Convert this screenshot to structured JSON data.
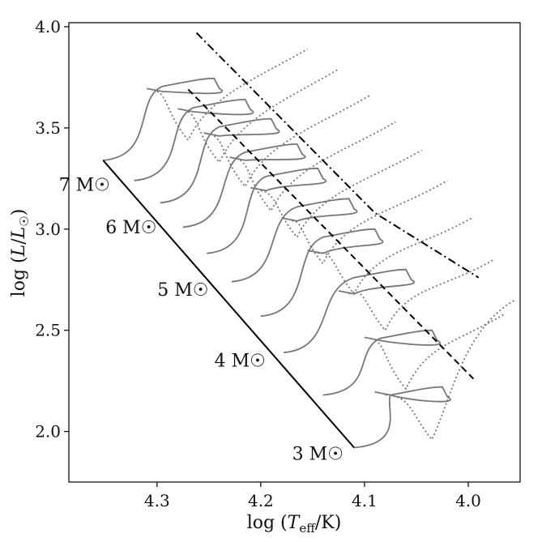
{
  "chart_data": {
    "type": "line",
    "xlabel": "log (T_eff/K)",
    "ylabel": "log (L/L☉)",
    "xlim": [
      4.385,
      3.95
    ],
    "ylim": [
      1.75,
      4.02
    ],
    "xticks": [
      {
        "value": 4.3,
        "label": "4.3"
      },
      {
        "value": 4.2,
        "label": "4.2"
      },
      {
        "value": 4.1,
        "label": "4.1"
      },
      {
        "value": 4.0,
        "label": "4.0"
      }
    ],
    "yticks": [
      {
        "value": 2.0,
        "label": "2.0"
      },
      {
        "value": 2.5,
        "label": "2.5"
      },
      {
        "value": 3.0,
        "label": "3.0"
      },
      {
        "value": 3.5,
        "label": "3.5"
      },
      {
        "value": 4.0,
        "label": "4.0"
      }
    ],
    "grid": false,
    "mass_labels": [
      {
        "text": "7 M☉",
        "x": 4.37,
        "y": 3.19
      },
      {
        "text": "6 M☉",
        "x": 4.325,
        "y": 2.98
      },
      {
        "text": "5 M☉",
        "x": 4.275,
        "y": 2.67
      },
      {
        "text": "4 M☉",
        "x": 4.22,
        "y": 2.32
      },
      {
        "text": "3 M☉",
        "x": 4.145,
        "y": 1.86
      }
    ],
    "series": [
      {
        "style": "solid",
        "color": "#000000",
        "x": [
          4.352,
          4.11
        ],
        "y": [
          3.34,
          1.92
        ]
      },
      {
        "style": "dashed",
        "color": "#000000",
        "x": [
          4.27,
          3.995
        ],
        "y": [
          3.69,
          2.26
        ]
      },
      {
        "style": "dashdot",
        "color": "#000000",
        "x": [
          4.262,
          4.09,
          3.99
        ],
        "y": [
          3.97,
          3.08,
          2.76
        ]
      }
    ],
    "tracks": [
      {
        "zams_x": 4.352,
        "zams_y": 3.34,
        "peak_x": 4.255,
        "peak_y": 3.745,
        "blue_y": 3.7,
        "dip_x": 4.27,
        "dip_y": 3.56,
        "red_x": 4.155,
        "red_y": 3.89
      },
      {
        "zams_x": 4.322,
        "zams_y": 3.24,
        "peak_x": 4.225,
        "peak_y": 3.64,
        "blue_y": 3.6,
        "dip_x": 4.24,
        "dip_y": 3.45,
        "red_x": 4.125,
        "red_y": 3.79
      },
      {
        "zams_x": 4.297,
        "zams_y": 3.13,
        "peak_x": 4.2,
        "peak_y": 3.545,
        "blue_y": 3.48,
        "dip_x": 4.215,
        "dip_y": 3.33,
        "red_x": 4.095,
        "red_y": 3.66
      },
      {
        "zams_x": 4.275,
        "zams_y": 3.01,
        "peak_x": 4.175,
        "peak_y": 3.42,
        "blue_y": 3.36,
        "dip_x": 4.19,
        "dip_y": 3.21,
        "red_x": 4.07,
        "red_y": 3.53
      },
      {
        "zams_x": 4.252,
        "zams_y": 2.88,
        "peak_x": 4.155,
        "peak_y": 3.3,
        "blue_y": 3.21,
        "dip_x": 4.165,
        "dip_y": 3.08,
        "red_x": 4.045,
        "red_y": 3.39
      },
      {
        "zams_x": 4.228,
        "zams_y": 2.74,
        "peak_x": 4.125,
        "peak_y": 3.15,
        "blue_y": 3.06,
        "dip_x": 4.14,
        "dip_y": 2.95,
        "red_x": 4.02,
        "red_y": 3.24
      },
      {
        "zams_x": 4.2,
        "zams_y": 2.57,
        "peak_x": 4.1,
        "peak_y": 3.0,
        "blue_y": 2.9,
        "dip_x": 4.11,
        "dip_y": 2.8,
        "red_x": 3.995,
        "red_y": 3.06
      },
      {
        "zams_x": 4.178,
        "zams_y": 2.39,
        "peak_x": 4.07,
        "peak_y": 2.8,
        "blue_y": 2.7,
        "dip_x": 4.08,
        "dip_y": 2.62,
        "red_x": 3.975,
        "red_y": 2.85
      },
      {
        "zams_x": 4.14,
        "zams_y": 2.18,
        "peak_x": 4.045,
        "peak_y": 2.5,
        "blue_y": 2.47,
        "dip_x": 4.06,
        "dip_y": 2.33,
        "red_x": 3.965,
        "red_y": 2.58
      },
      {
        "zams_x": 4.11,
        "zams_y": 1.92,
        "peak_x": 4.035,
        "peak_y": 2.22,
        "blue_y": 2.2,
        "dip_x": 4.035,
        "dip_y": 2.08,
        "red_x": 3.955,
        "red_y": 2.65
      }
    ]
  }
}
